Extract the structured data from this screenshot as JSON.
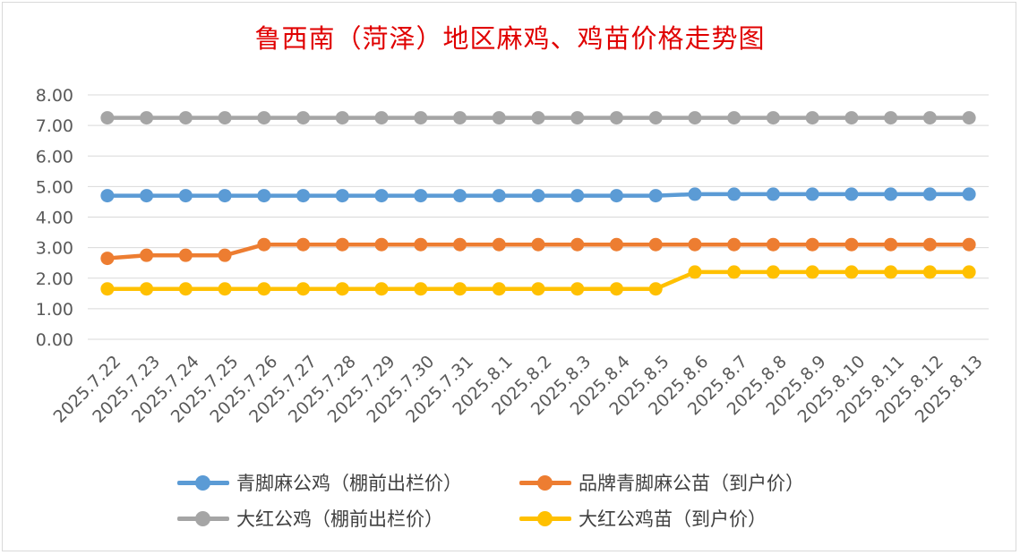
{
  "chart_data": {
    "type": "line",
    "title": "鲁西南（菏泽）地区麻鸡、鸡苗价格走势图",
    "ylim": [
      0,
      8
    ],
    "y_ticks": [
      "0.00",
      "1.00",
      "2.00",
      "3.00",
      "4.00",
      "5.00",
      "6.00",
      "7.00",
      "8.00"
    ],
    "grid": true,
    "legend_position": "bottom",
    "categories": [
      "2025.7.22",
      "2025.7.23",
      "2025.7.24",
      "2025.7.25",
      "2025.7.26",
      "2025.7.27",
      "2025.7.28",
      "2025.7.29",
      "2025.7.30",
      "2025.7.31",
      "2025.8.1",
      "2025.8.2",
      "2025.8.3",
      "2025.8.4",
      "2025.8.5",
      "2025.8.6",
      "2025.8.7",
      "2025.8.8",
      "2025.8.9",
      "2025.8.10",
      "2025.8.11",
      "2025.8.12",
      "2025.8.13"
    ],
    "series": [
      {
        "name": "青脚麻公鸡（棚前出栏价）",
        "color": "#5B9BD5",
        "values": [
          4.7,
          4.7,
          4.7,
          4.7,
          4.7,
          4.7,
          4.7,
          4.7,
          4.7,
          4.7,
          4.7,
          4.7,
          4.7,
          4.7,
          4.7,
          4.75,
          4.75,
          4.75,
          4.75,
          4.75,
          4.75,
          4.75,
          4.75
        ]
      },
      {
        "name": "品牌青脚麻公苗（到户价）",
        "color": "#ED7D31",
        "values": [
          2.65,
          2.75,
          2.75,
          2.75,
          3.1,
          3.1,
          3.1,
          3.1,
          3.1,
          3.1,
          3.1,
          3.1,
          3.1,
          3.1,
          3.1,
          3.1,
          3.1,
          3.1,
          3.1,
          3.1,
          3.1,
          3.1,
          3.1
        ]
      },
      {
        "name": "大红公鸡（棚前出栏价）",
        "color": "#A5A5A5",
        "values": [
          7.25,
          7.25,
          7.25,
          7.25,
          7.25,
          7.25,
          7.25,
          7.25,
          7.25,
          7.25,
          7.25,
          7.25,
          7.25,
          7.25,
          7.25,
          7.25,
          7.25,
          7.25,
          7.25,
          7.25,
          7.25,
          7.25,
          7.25
        ]
      },
      {
        "name": "大红公鸡苗（到户价）",
        "color": "#FFC000",
        "values": [
          1.65,
          1.65,
          1.65,
          1.65,
          1.65,
          1.65,
          1.65,
          1.65,
          1.65,
          1.65,
          1.65,
          1.65,
          1.65,
          1.65,
          1.65,
          2.2,
          2.2,
          2.2,
          2.2,
          2.2,
          2.2,
          2.2,
          2.2
        ]
      }
    ]
  }
}
